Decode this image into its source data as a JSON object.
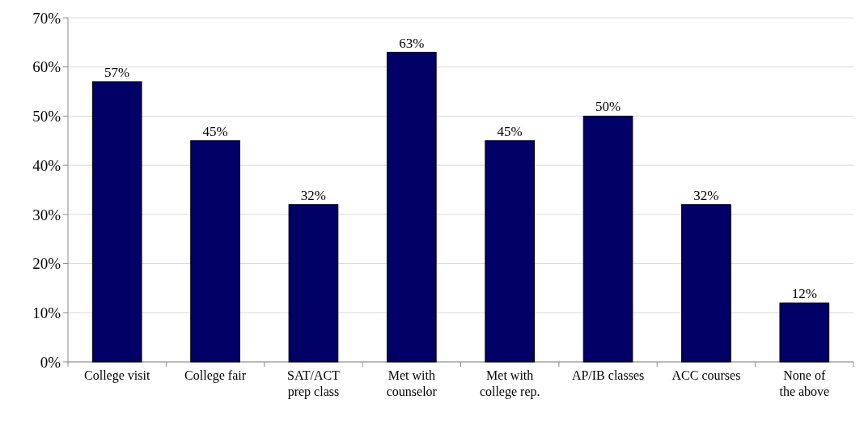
{
  "chart_data": {
    "type": "bar",
    "categories": [
      "College visit",
      "College fair",
      "SAT/ACT prep class",
      "Met with counselor",
      "Met with college rep.",
      "AP/IB classes",
      "ACC courses",
      "None of the above"
    ],
    "values": [
      57,
      45,
      32,
      63,
      45,
      50,
      32,
      12
    ],
    "color": "#000066",
    "value_labels": [
      "57%",
      "45%",
      "32%",
      "63%",
      "45%",
      "50%",
      "32%",
      "12%"
    ],
    "ylim": [
      0,
      70
    ],
    "yticks": [
      {
        "value": 0,
        "label": "0%"
      },
      {
        "value": 10,
        "label": "10%"
      },
      {
        "value": 20,
        "label": "20%"
      },
      {
        "value": 30,
        "label": "30%"
      },
      {
        "value": 40,
        "label": "40%"
      },
      {
        "value": 50,
        "label": "50%"
      },
      {
        "value": 60,
        "label": "60%"
      },
      {
        "value": 70,
        "label": "70%"
      }
    ],
    "grid": "y"
  }
}
